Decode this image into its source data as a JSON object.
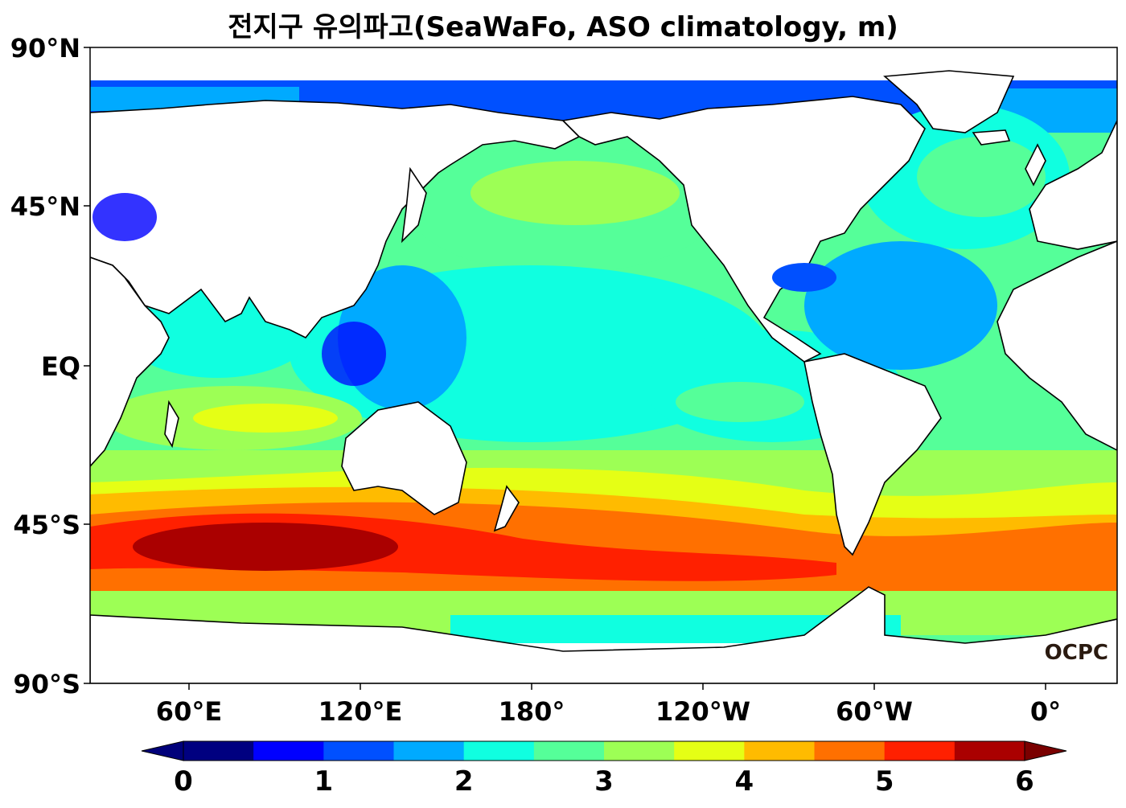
{
  "title": "전지구 유의파고(SeaWaFo, ASO climatology, m)",
  "lat_labels": [
    "90°N",
    "45°N",
    "EQ",
    "45°S",
    "90°S"
  ],
  "lon_labels": [
    "60°E",
    "120°E",
    "180°",
    "120°W",
    "60°W",
    "0°"
  ],
  "colorbar": {
    "ticks": [
      "0",
      "1",
      "2",
      "3",
      "4",
      "5",
      "6"
    ],
    "levels": [
      0,
      0.5,
      1,
      1.5,
      2,
      2.5,
      3,
      3.5,
      4,
      4.5,
      5,
      5.5,
      6
    ],
    "colors": [
      "#000080",
      "#0000ff",
      "#0050ff",
      "#00aaff",
      "#10ffe0",
      "#55ff99",
      "#9dff55",
      "#e5ff15",
      "#ffbb00",
      "#ff7000",
      "#ff2000",
      "#aa0000"
    ],
    "under_color": "#00007a",
    "over_color": "#7a0000"
  },
  "logo": "OCPC",
  "land_color": "#ffffff"
}
